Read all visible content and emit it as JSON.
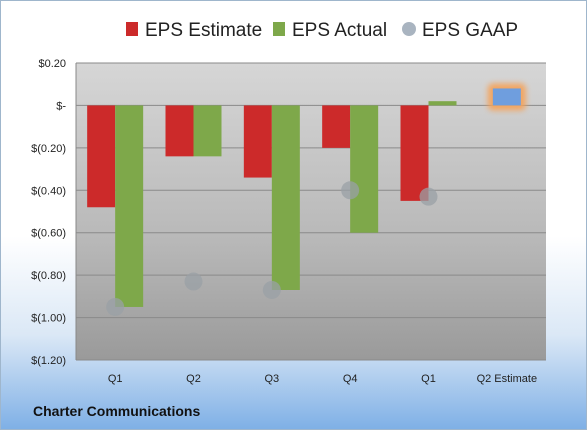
{
  "company": "Charter Communications",
  "colors": {
    "estimate": "#cc2a2a",
    "actual": "#7ea84a",
    "gaap": "#a9b4c0",
    "forecast": "#6f9ede",
    "forecast_glow": "#f5a35a"
  },
  "chart_data": {
    "type": "bar",
    "title": "",
    "xlabel": "",
    "ylabel": "",
    "ylim": [
      -1.2,
      0.2
    ],
    "yticks": [
      0.2,
      0,
      -0.2,
      -0.4,
      -0.6,
      -0.8,
      -1.0,
      -1.2
    ],
    "ytick_labels": [
      "$0.20",
      "$-",
      "$(0.20)",
      "$(0.40)",
      "$(0.60)",
      "$(0.80)",
      "$(1.00)",
      "$(1.20)"
    ],
    "categories": [
      "Q1",
      "Q2",
      "Q3",
      "Q4",
      "Q1",
      "Q2 Estimate"
    ],
    "legend": {
      "placement": "top"
    },
    "grid": true,
    "series": [
      {
        "name": "EPS Estimate",
        "kind": "bar",
        "values": [
          -0.48,
          -0.24,
          -0.34,
          -0.2,
          -0.45,
          null
        ]
      },
      {
        "name": "EPS Actual",
        "kind": "bar",
        "values": [
          -0.95,
          -0.24,
          -0.87,
          -0.6,
          0.02,
          0.08
        ]
      },
      {
        "name": "EPS GAAP",
        "kind": "marker",
        "values": [
          -0.95,
          -0.83,
          -0.87,
          -0.4,
          -0.43,
          null
        ]
      }
    ]
  }
}
